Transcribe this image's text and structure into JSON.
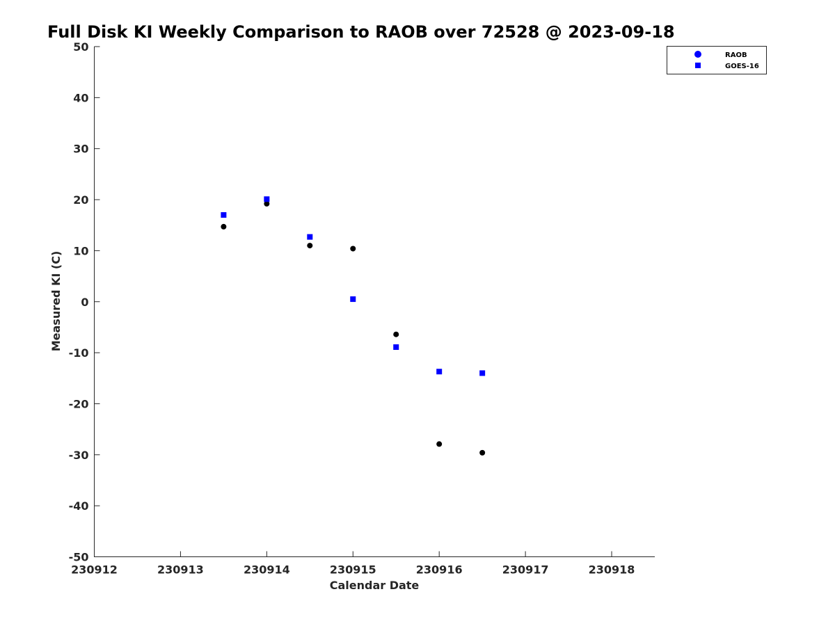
{
  "chart_data": {
    "type": "scatter",
    "title": "Full Disk KI Weekly Comparison to RAOB over 72528 @ 2023-09-18",
    "xlabel": "Calendar Date",
    "ylabel": "Measured KI (C)",
    "xlim": [
      230912,
      230918.5
    ],
    "ylim": [
      -50,
      50
    ],
    "xticks": [
      230912,
      230913,
      230914,
      230915,
      230916,
      230917,
      230918
    ],
    "xtick_labels": [
      "230912",
      "230913",
      "230914",
      "230915",
      "230916",
      "230917",
      "230918"
    ],
    "yticks": [
      -50,
      -40,
      -30,
      -20,
      -10,
      0,
      10,
      20,
      30,
      40,
      50
    ],
    "ytick_labels": [
      "-50",
      "-40",
      "-30",
      "-20",
      "-10",
      "0",
      "10",
      "20",
      "30",
      "40",
      "50"
    ],
    "grid": false,
    "legend_position": "top-right",
    "series": [
      {
        "name": "RAOB",
        "marker": "circle",
        "color": "#000000",
        "legend_color": "#0000ff",
        "x": [
          230913.5,
          230914,
          230914.5,
          230915,
          230915.5,
          230916,
          230916.5
        ],
        "y": [
          14.7,
          19.2,
          11.0,
          10.4,
          -6.4,
          -27.9,
          -29.6
        ]
      },
      {
        "name": "GOES-16",
        "marker": "square",
        "color": "#0000ff",
        "legend_color": "#0000ff",
        "x": [
          230913.5,
          230914,
          230914.5,
          230915,
          230915.5,
          230916,
          230916.5
        ],
        "y": [
          17.0,
          20.1,
          12.7,
          0.5,
          -8.9,
          -13.7,
          -14.0
        ]
      }
    ]
  }
}
